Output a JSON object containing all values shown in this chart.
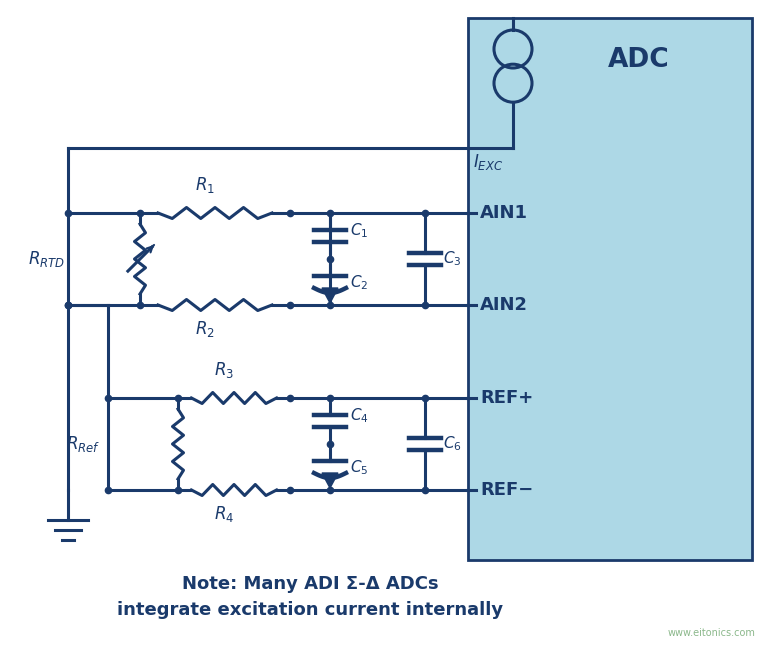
{
  "bg_color": "#ffffff",
  "adc_box_color": "#add8e6",
  "adc_box_edge": "#1a3a6b",
  "line_color": "#1a3a6b",
  "text_color": "#1a3a6b",
  "note_line1": "Note: Many ADI Σ-Δ ADCs",
  "note_line2": "integrate excitation current internally",
  "note_color": "#1a3a6b",
  "watermark": "www.eitonics.com",
  "lw": 2.2,
  "dot_r": 4.5,
  "adc_label": "ADC",
  "iexc_label": "$I_{EXC}$",
  "ain1_label": "AIN1",
  "ain2_label": "AIN2",
  "refp_label": "REF+",
  "refm_label": "REF−"
}
